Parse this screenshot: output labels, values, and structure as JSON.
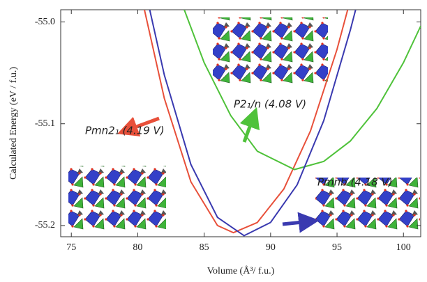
{
  "chart_data": {
    "type": "line",
    "xlabel": "Volume (Å³/ f.u.)",
    "ylabel": "Calculated Energy (eV / f.u.)",
    "xlim": [
      74.2,
      101.3
    ],
    "ylim": [
      -55.211,
      -54.988
    ],
    "xticks": [
      75,
      80,
      85,
      90,
      95,
      100
    ],
    "yticks": [
      {
        "value": -55,
        "label": "-55.0"
      },
      -55.1,
      -55.2
    ],
    "series": [
      {
        "name": "Pmn2₁ (4.19 V)",
        "color": "#e8503a",
        "x": [
          80.5,
          82,
          84,
          86,
          87.2,
          89,
          91,
          93,
          95,
          95.8
        ],
        "values": [
          -54.988,
          -55.075,
          -55.157,
          -55.2,
          -55.207,
          -55.197,
          -55.164,
          -55.107,
          -55.027,
          -54.988
        ]
      },
      {
        "name": "P2₁/n (4.08 V)",
        "color": "#4fc23a",
        "x": [
          83.5,
          85,
          87,
          89,
          91.8,
          94,
          96,
          98,
          100,
          101.3
        ],
        "values": [
          -54.988,
          -55.04,
          -55.092,
          -55.127,
          -55.145,
          -55.137,
          -55.117,
          -55.085,
          -55.04,
          -55.004
        ]
      },
      {
        "name": "Pmnb (4.18 V)",
        "color": "#3a3ab0",
        "x": [
          80.9,
          82,
          84,
          86,
          88,
          90,
          92,
          94,
          96,
          96.4
        ],
        "values": [
          -54.988,
          -55.052,
          -55.14,
          -55.192,
          -55.21,
          -55.197,
          -55.16,
          -55.097,
          -55.008,
          -54.988
        ]
      }
    ]
  }
}
